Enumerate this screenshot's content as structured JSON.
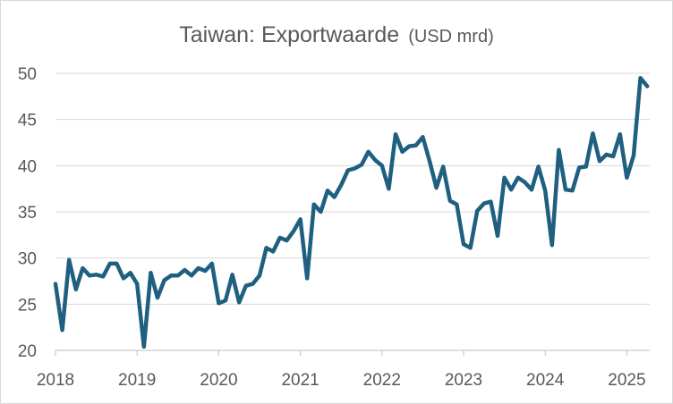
{
  "chart_data": {
    "type": "line",
    "title": "Taiwan: Exportwaarde",
    "unit": "(USD mrd)",
    "xlabel": "",
    "ylabel": "",
    "ylim": [
      20,
      50
    ],
    "yticks": [
      20,
      25,
      30,
      35,
      40,
      45,
      50
    ],
    "xticks": [
      "2018",
      "2019",
      "2020",
      "2021",
      "2022",
      "2023",
      "2024",
      "2025"
    ],
    "grid": true,
    "legend": "none",
    "colors": {
      "line": "#1F5F7F",
      "grid": "#D9D9D9",
      "text": "#595959"
    },
    "x_start": "2018-01",
    "frequency": "monthly",
    "values": [
      27.2,
      22.2,
      29.8,
      26.6,
      28.9,
      28.1,
      28.2,
      28.0,
      29.4,
      29.4,
      27.8,
      28.4,
      27.2,
      20.4,
      28.4,
      25.7,
      27.6,
      28.1,
      28.1,
      28.7,
      28.1,
      28.9,
      28.6,
      29.4,
      25.1,
      25.4,
      28.2,
      25.2,
      27.0,
      27.2,
      28.1,
      31.1,
      30.7,
      32.2,
      31.9,
      32.9,
      34.2,
      27.8,
      35.8,
      35.0,
      37.3,
      36.6,
      37.9,
      39.5,
      39.7,
      40.1,
      41.5,
      40.6,
      40.0,
      37.5,
      43.4,
      41.5,
      42.1,
      42.2,
      43.1,
      40.5,
      37.6,
      39.9,
      36.2,
      35.8,
      31.5,
      31.1,
      35.1,
      35.9,
      36.1,
      32.4,
      38.7,
      37.4,
      38.7,
      38.2,
      37.4,
      39.9,
      37.3,
      31.4,
      41.7,
      37.4,
      37.3,
      39.8,
      39.9,
      43.5,
      40.5,
      41.2,
      41.0,
      43.4,
      38.7,
      41.1,
      49.5,
      48.6
    ]
  }
}
